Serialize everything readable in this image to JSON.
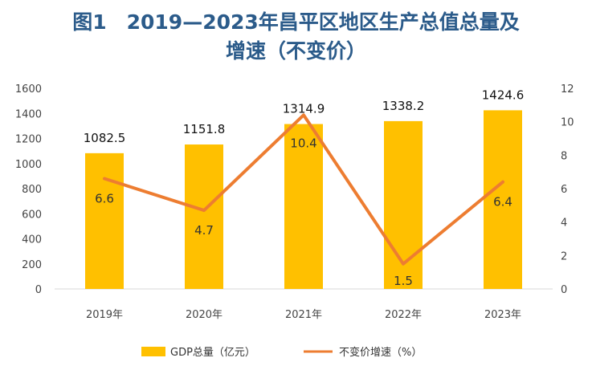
{
  "title_lines": [
    "图1　2019—2023年昌平区地区生产总值总量及",
    "增速（不变价）"
  ],
  "colors": {
    "bar": "#FFC000",
    "line": "#ED7D31",
    "title": "#2B5B8A"
  },
  "chart_data": {
    "type": "bar+line",
    "categories": [
      "2019年",
      "2020年",
      "2021年",
      "2022年",
      "2023年"
    ],
    "series": [
      {
        "name": "GDP总量（亿元）",
        "type": "bar",
        "axis": "left",
        "values": [
          1082.5,
          1151.8,
          1314.9,
          1338.2,
          1424.6
        ]
      },
      {
        "name": "不变价增速（%）",
        "type": "line",
        "axis": "right",
        "values": [
          6.6,
          4.7,
          10.4,
          1.5,
          6.4
        ]
      }
    ],
    "y_left": {
      "min": 0,
      "max": 1600,
      "ticks": [
        "0",
        "200",
        "400",
        "600",
        "800",
        "1000",
        "1200",
        "1400",
        "1600"
      ]
    },
    "y_right": {
      "min": 0,
      "max": 12,
      "ticks": [
        "0",
        "2",
        "4",
        "6",
        "8",
        "10",
        "12"
      ]
    },
    "grid": false,
    "legend_position": "bottom"
  }
}
